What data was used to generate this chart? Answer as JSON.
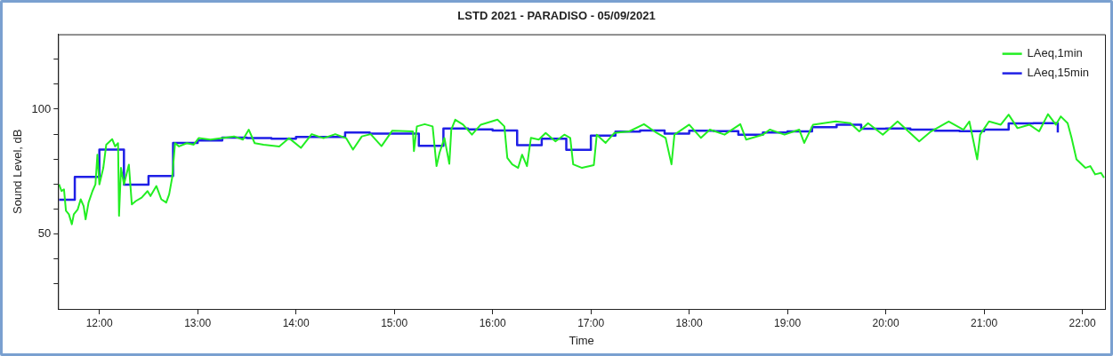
{
  "chart_data": {
    "type": "line",
    "title": "LSTD 2021 - PARADISO - 05/09/2021",
    "xlabel": "Time",
    "ylabel": "Sound Level, dB",
    "xlim": [
      11.58,
      22.23
    ],
    "xticks": [
      {
        "value": 12,
        "label": "12:00"
      },
      {
        "value": 13,
        "label": "13:00"
      },
      {
        "value": 14,
        "label": "14:00"
      },
      {
        "value": 15,
        "label": "15:00"
      },
      {
        "value": 16,
        "label": "16:00"
      },
      {
        "value": 17,
        "label": "17:00"
      },
      {
        "value": 18,
        "label": "18:00"
      },
      {
        "value": 19,
        "label": "19:00"
      },
      {
        "value": 20,
        "label": "20:00"
      },
      {
        "value": 21,
        "label": "21:00"
      },
      {
        "value": 22,
        "label": "22:00"
      }
    ],
    "ylim": [
      20,
      130
    ],
    "yticks": [
      {
        "value": 30,
        "label": null
      },
      {
        "value": 40,
        "label": null
      },
      50,
      {
        "value": 60,
        "label": null
      },
      {
        "value": 70,
        "label": null
      },
      {
        "value": 80,
        "label": null
      },
      {
        "value": 90,
        "label": null
      },
      100,
      {
        "value": 110,
        "label": null
      },
      {
        "value": 120,
        "label": null
      }
    ],
    "grid": false,
    "legend": "top right",
    "marker": "none",
    "line_style": "solid",
    "series": [
      {
        "name": "LAeq,1min",
        "color": "#22ee22",
        "x": [
          11.59,
          11.615,
          11.64,
          11.66,
          11.69,
          11.72,
          11.74,
          11.78,
          11.81,
          11.84,
          11.86,
          11.89,
          11.93,
          11.96,
          11.98,
          12.0,
          12.04,
          12.07,
          12.13,
          12.16,
          12.19,
          12.2,
          12.22,
          12.25,
          12.3,
          12.33,
          12.37,
          12.43,
          12.49,
          12.52,
          12.58,
          12.63,
          12.68,
          12.71,
          12.74,
          12.77,
          12.81,
          12.89,
          12.96,
          13.01,
          13.13,
          13.25,
          13.37,
          13.46,
          13.52,
          13.58,
          13.67,
          13.83,
          13.93,
          14.05,
          14.16,
          14.28,
          14.4,
          14.51,
          14.58,
          14.67,
          14.76,
          14.87,
          14.98,
          15.19,
          15.2,
          15.23,
          15.31,
          15.39,
          15.43,
          15.46,
          15.51,
          15.56,
          15.58,
          15.62,
          15.7,
          15.79,
          15.88,
          16.05,
          16.12,
          16.15,
          16.2,
          16.26,
          16.3,
          16.35,
          16.39,
          16.47,
          16.54,
          16.64,
          16.73,
          16.79,
          16.82,
          16.91,
          17.03,
          17.06,
          17.15,
          17.24,
          17.39,
          17.54,
          17.67,
          17.76,
          17.82,
          17.85,
          18.0,
          18.12,
          18.21,
          18.36,
          18.52,
          18.58,
          18.75,
          18.82,
          18.97,
          19.12,
          19.17,
          19.26,
          19.49,
          19.64,
          19.73,
          19.82,
          19.97,
          20.12,
          20.34,
          20.46,
          20.64,
          20.79,
          20.85,
          20.93,
          20.96,
          21.05,
          21.17,
          21.25,
          21.34,
          21.46,
          21.56,
          21.65,
          21.73,
          21.78,
          21.85,
          21.89,
          21.94,
          22.03,
          22.08,
          22.13,
          22.19,
          22.22
        ],
        "values": [
          69.9,
          67.2,
          67.9,
          59.3,
          57.9,
          53.9,
          57.9,
          59.9,
          63.9,
          61.2,
          55.9,
          62.6,
          67.2,
          69.9,
          81.8,
          69.9,
          76.5,
          85.8,
          88.0,
          85.1,
          86.4,
          57.3,
          76.5,
          69.9,
          77.8,
          61.9,
          63.2,
          64.6,
          67.2,
          65.2,
          69.2,
          63.9,
          62.6,
          65.9,
          72.5,
          86.4,
          85.1,
          86.4,
          85.8,
          88.4,
          87.8,
          88.4,
          89.1,
          87.8,
          91.8,
          86.4,
          85.8,
          85.1,
          88.4,
          84.5,
          90.0,
          88.4,
          90.0,
          88.4,
          83.8,
          89.1,
          90.0,
          85.2,
          91.4,
          91.1,
          83.2,
          93.1,
          94.0,
          93.1,
          77.2,
          82.5,
          88.5,
          78.1,
          91.8,
          95.8,
          93.8,
          89.8,
          93.8,
          95.8,
          93.1,
          80.5,
          77.9,
          76.5,
          81.8,
          77.2,
          88.5,
          87.8,
          90.5,
          87.1,
          89.8,
          88.5,
          77.9,
          76.5,
          77.6,
          89.8,
          86.5,
          90.5,
          91.1,
          94.0,
          90.5,
          88.5,
          77.9,
          89.8,
          93.8,
          88.5,
          91.8,
          89.8,
          94.0,
          87.8,
          89.8,
          91.8,
          89.8,
          91.8,
          86.5,
          93.8,
          95.1,
          94.4,
          91.1,
          94.4,
          89.8,
          95.1,
          87.1,
          91.1,
          95.1,
          91.8,
          95.1,
          79.9,
          89.8,
          95.1,
          93.8,
          97.8,
          92.4,
          93.8,
          91.1,
          98.0,
          93.8,
          97.1,
          94.4,
          88.5,
          79.9,
          76.5,
          77.2,
          73.9,
          74.5,
          72.5
        ]
      },
      {
        "name": "LAeq,15min",
        "type": "step",
        "color": "#1f1fe6",
        "x": [
          11.59,
          11.75,
          12.0,
          12.25,
          12.5,
          12.75,
          13.0,
          13.25,
          13.5,
          13.75,
          14.0,
          14.25,
          14.5,
          14.75,
          15.0,
          15.25,
          15.5,
          15.75,
          16.0,
          16.25,
          16.5,
          16.75,
          17.0,
          17.25,
          17.5,
          17.75,
          18.0,
          18.25,
          18.5,
          18.75,
          19.0,
          19.25,
          19.5,
          19.75,
          20.0,
          20.25,
          20.5,
          20.75,
          21.0,
          21.25,
          21.5,
          21.75
        ],
        "values": [
          63.7,
          72.9,
          83.8,
          69.8,
          73.2,
          86.5,
          87.5,
          88.6,
          88.4,
          88.2,
          88.9,
          88.9,
          90.7,
          90.2,
          90.2,
          85.3,
          92.3,
          91.9,
          91.5,
          85.6,
          88.2,
          83.7,
          89.4,
          91.0,
          91.5,
          90.2,
          91.4,
          91.2,
          89.8,
          90.7,
          91.1,
          92.8,
          93.8,
          92.2,
          92.3,
          91.8,
          91.4,
          91.2,
          91.8,
          94.3,
          94.4,
          90.7
        ]
      }
    ]
  }
}
